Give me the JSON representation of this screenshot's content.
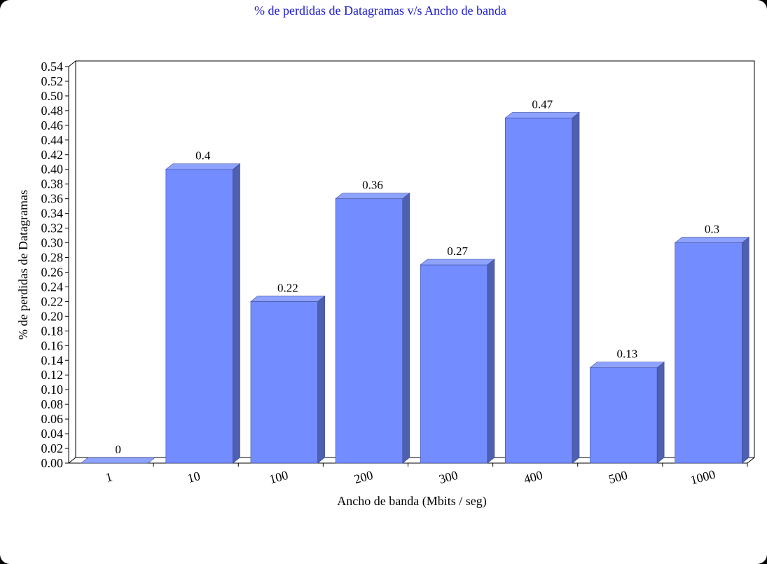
{
  "chart_data": {
    "type": "bar",
    "title": "% de perdidas de Datagramas v/s Ancho de banda",
    "xlabel": "Ancho de banda (Mbits / seg)",
    "ylabel": "% de perdidas de Datagramas",
    "categories": [
      "1",
      "10",
      "100",
      "200",
      "300",
      "400",
      "500",
      "1000"
    ],
    "values": [
      0,
      0.4,
      0.22,
      0.36,
      0.27,
      0.47,
      0.13,
      0.3
    ],
    "data_labels": [
      "0",
      "0.4",
      "0.22",
      "0.36",
      "0.27",
      "0.47",
      "0.13",
      "0.3"
    ],
    "ylim": [
      0,
      0.54
    ],
    "ytick_step": 0.02,
    "grid": false,
    "legend": "none",
    "colors": {
      "title": "#1a1ad0",
      "bar_front": "#738cff",
      "bar_top": "#8ea2ff",
      "bar_side": "#4f60b0",
      "frame": "#000000"
    }
  }
}
